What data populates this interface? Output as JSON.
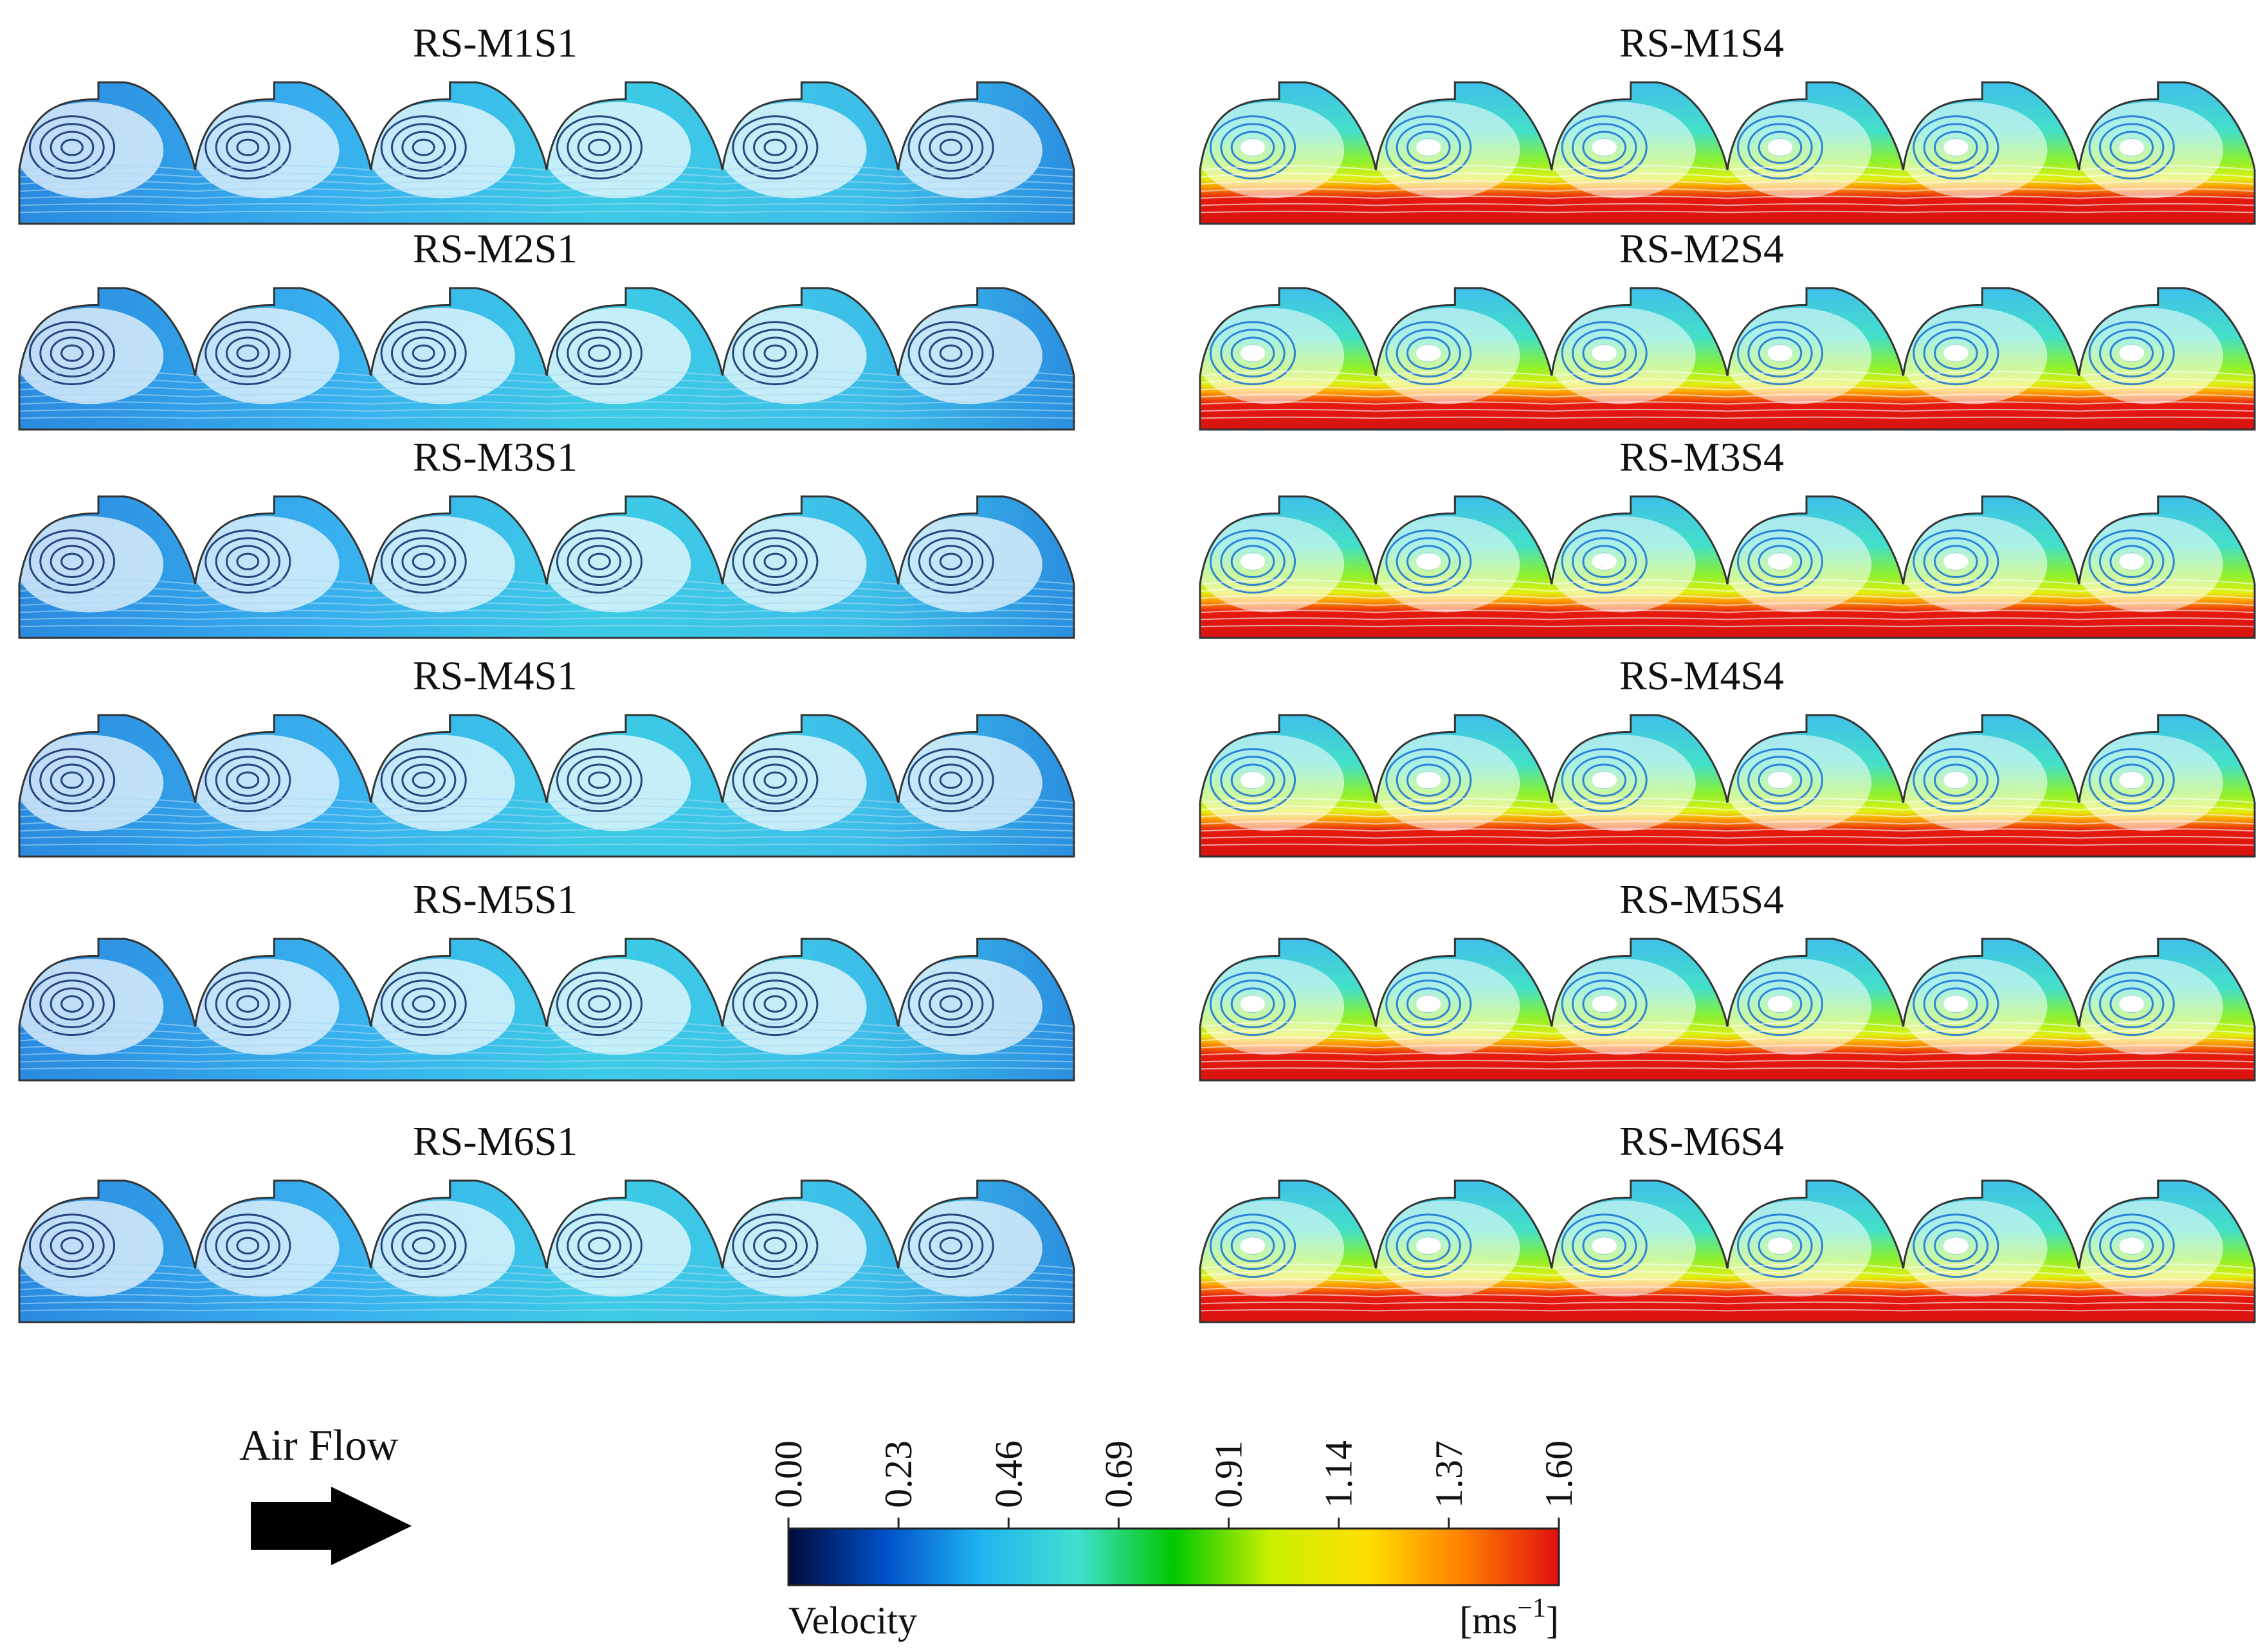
{
  "panels": [
    {
      "title": "RS-M1S1",
      "speed": "S1"
    },
    {
      "title": "RS-M1S4",
      "speed": "S4"
    },
    {
      "title": "RS-M2S1",
      "speed": "S1"
    },
    {
      "title": "RS-M2S4",
      "speed": "S4"
    },
    {
      "title": "RS-M3S1",
      "speed": "S1"
    },
    {
      "title": "RS-M3S4",
      "speed": "S4"
    },
    {
      "title": "RS-M4S1",
      "speed": "S1"
    },
    {
      "title": "RS-M4S4",
      "speed": "S4"
    },
    {
      "title": "RS-M5S1",
      "speed": "S1"
    },
    {
      "title": "RS-M5S4",
      "speed": "S4"
    },
    {
      "title": "RS-M6S1",
      "speed": "S1"
    },
    {
      "title": "RS-M6S4",
      "speed": "S4"
    }
  ],
  "air_flow": {
    "label": "Air Flow"
  },
  "colorbar": {
    "ticks": [
      "0.00",
      "0.23",
      "0.46",
      "0.69",
      "0.91",
      "1.14",
      "1.37",
      "1.60"
    ],
    "min": 0.0,
    "max": 1.6,
    "label": "Velocity",
    "unit_base": "[ms",
    "unit_exp": "−1",
    "unit_close": "]",
    "stops": [
      "#000a3c",
      "#0050c8",
      "#20b4f0",
      "#40e0d0",
      "#00c800",
      "#c8f000",
      "#ffe000",
      "#ff8000",
      "#e01010"
    ]
  }
}
